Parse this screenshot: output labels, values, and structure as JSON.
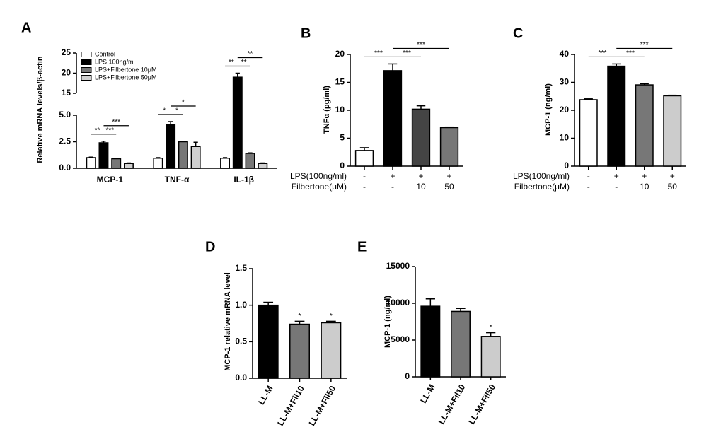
{
  "chart_data": [
    {
      "type": "bar",
      "panel": "A",
      "ylabel": "Relative mRNA levels/β-actin",
      "categories": [
        "MCP-1",
        "TNF-α",
        "IL-1β"
      ],
      "series": [
        {
          "name": "Control",
          "color": "#ffffff",
          "values": [
            1.0,
            0.95,
            0.95
          ],
          "errors": [
            0.05,
            0.05,
            0.05
          ]
        },
        {
          "name": "LPS 100ng/ml",
          "color": "#000000",
          "values": [
            2.4,
            4.1,
            19
          ],
          "errors": [
            0.15,
            0.3,
            1.0
          ]
        },
        {
          "name": "LPS+Filbertone 10μM",
          "color": "#777777",
          "values": [
            0.9,
            2.5,
            1.4
          ],
          "errors": [
            0.04,
            0.05,
            0.05
          ]
        },
        {
          "name": "LPS+Filbertone 50μM",
          "color": "#d0d0d0",
          "values": [
            0.45,
            2.05,
            0.45
          ],
          "errors": [
            0.05,
            0.4,
            0.05
          ]
        }
      ],
      "ylim": [
        0,
        25
      ],
      "ybreak": [
        5,
        15
      ],
      "yticks": [
        {
          "value": 0,
          "label": "0.0"
        },
        2.5,
        {
          "value": 5,
          "label": "5.0"
        },
        15,
        20,
        25
      ],
      "annotations": [
        {
          "label": "**",
          "category": 0,
          "from": 0,
          "to": 1
        },
        {
          "label": "***",
          "category": 0,
          "from": 1,
          "to": 2
        },
        {
          "label": "***",
          "category": 0,
          "from": 1,
          "to": 3
        },
        {
          "label": "*",
          "category": 1,
          "from": 0,
          "to": 1
        },
        {
          "label": "*",
          "category": 1,
          "from": 1,
          "to": 2
        },
        {
          "label": "*",
          "category": 1,
          "from": 1,
          "to": 3
        },
        {
          "label": "**",
          "category": 2,
          "from": 0,
          "to": 1
        },
        {
          "label": "**",
          "category": 2,
          "from": 1,
          "to": 2
        },
        {
          "label": "**",
          "category": 2,
          "from": 1,
          "to": 3
        }
      ]
    },
    {
      "type": "bar",
      "panel": "B",
      "ylabel": "TNFα (pg/ml)",
      "values": [
        2.8,
        17.1,
        10.2,
        6.9
      ],
      "errors": [
        0.5,
        1.2,
        0.6,
        0.1
      ],
      "colors": [
        "#ffffff",
        "#000000",
        "#444444",
        "#777777"
      ],
      "ylim": [
        0,
        20
      ],
      "yticks": [
        0,
        5,
        10,
        15,
        20
      ],
      "rows": [
        {
          "label": "LPS(100ng/ml)",
          "cells": [
            "-",
            "+",
            "+",
            "+"
          ]
        },
        {
          "label": "Filbertone(μM)",
          "cells": [
            "-",
            "-",
            "10",
            "50"
          ]
        }
      ],
      "annotations": [
        {
          "label": "***",
          "from": 0,
          "to": 1
        },
        {
          "label": "***",
          "from": 1,
          "to": 2
        },
        {
          "label": "***",
          "from": 1,
          "to": 3
        }
      ]
    },
    {
      "type": "bar",
      "panel": "C",
      "ylabel": "MCP-1 (ng/ml)",
      "values": [
        23.8,
        35.8,
        29.1,
        25.2
      ],
      "errors": [
        0.3,
        0.8,
        0.4,
        0.2
      ],
      "colors": [
        "#ffffff",
        "#000000",
        "#777777",
        "#cccccc"
      ],
      "ylim": [
        0,
        40
      ],
      "yticks": [
        0,
        10,
        20,
        30,
        40
      ],
      "rows": [
        {
          "label": "LPS(100ng/ml)",
          "cells": [
            "-",
            "+",
            "+",
            "+"
          ]
        },
        {
          "label": "Filbertone(μM)",
          "cells": [
            "-",
            "-",
            "10",
            "50"
          ]
        }
      ],
      "annotations": [
        {
          "label": "***",
          "from": 0,
          "to": 1
        },
        {
          "label": "***",
          "from": 1,
          "to": 2
        },
        {
          "label": "***",
          "from": 1,
          "to": 3
        }
      ]
    },
    {
      "type": "bar",
      "panel": "D",
      "ylabel": "MCP-1  relative mRNA level",
      "categories": [
        "LL-M",
        "LL-M+Fil10",
        "LL-M+Fil50"
      ],
      "values": [
        1.0,
        0.74,
        0.76
      ],
      "errors": [
        0.04,
        0.04,
        0.02
      ],
      "colors": [
        "#000000",
        "#777777",
        "#cccccc"
      ],
      "ylim": [
        0,
        1.5
      ],
      "yticks": [
        {
          "value": 0,
          "label": "0.0"
        },
        0.5,
        {
          "value": 1,
          "label": "1.0"
        },
        1.5
      ],
      "annotations": [
        {
          "label": "*",
          "bar": 1
        },
        {
          "label": "*",
          "bar": 2
        }
      ]
    },
    {
      "type": "bar",
      "panel": "E",
      "ylabel": "MCP-1 (ng/ml)",
      "categories": [
        "LL-M",
        "LL-M+Fil10",
        "LL-M+Fil50"
      ],
      "values": [
        9600,
        8900,
        5500
      ],
      "errors": [
        1000,
        400,
        500
      ],
      "colors": [
        "#000000",
        "#777777",
        "#cccccc"
      ],
      "ylim": [
        0,
        15000
      ],
      "yticks": [
        0,
        5000,
        10000,
        15000
      ],
      "annotations": [
        {
          "label": "*",
          "bar": 2
        }
      ]
    }
  ]
}
